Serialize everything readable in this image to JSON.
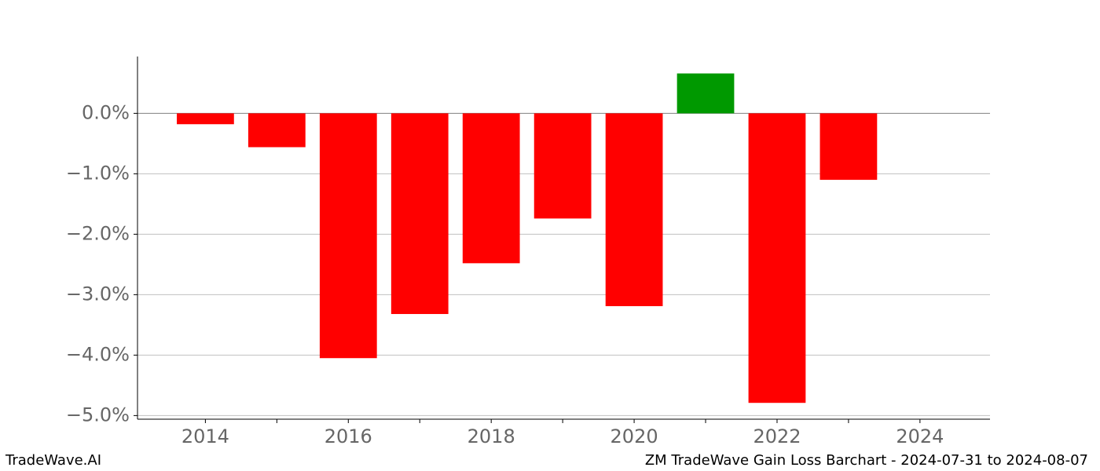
{
  "chart_data": {
    "type": "bar",
    "x": [
      2014,
      2015,
      2016,
      2017,
      2018,
      2019,
      2020,
      2021,
      2022,
      2023
    ],
    "values": [
      -0.18,
      -0.56,
      -4.05,
      -3.32,
      -2.48,
      -1.74,
      -3.19,
      0.66,
      -4.79,
      -1.1
    ],
    "colors": [
      "#ff0000",
      "#ff0000",
      "#ff0000",
      "#ff0000",
      "#ff0000",
      "#ff0000",
      "#ff0000",
      "#009900",
      "#ff0000",
      "#ff0000"
    ],
    "xlim": [
      2013.05,
      2024.98
    ],
    "xticks": [
      2014,
      2016,
      2018,
      2020,
      2022,
      2024
    ],
    "xminorticks": [
      2015,
      2017,
      2019,
      2021,
      2023
    ],
    "ylim": [
      -5.06,
      0.94
    ],
    "yticks": [
      {
        "value": 0,
        "label": "0.0%"
      },
      {
        "value": -1,
        "label": "−1.0%"
      },
      {
        "value": -2,
        "label": "−2.0%"
      },
      {
        "value": -3,
        "label": "−3.0%"
      },
      {
        "value": -4,
        "label": "−4.0%"
      },
      {
        "value": -5,
        "label": "−5.0%"
      }
    ],
    "grid": true,
    "footer_left": "TradeWave.AI",
    "footer_right": "ZM TradeWave Gain Loss Barchart - 2024-07-31 to 2024-08-07"
  }
}
